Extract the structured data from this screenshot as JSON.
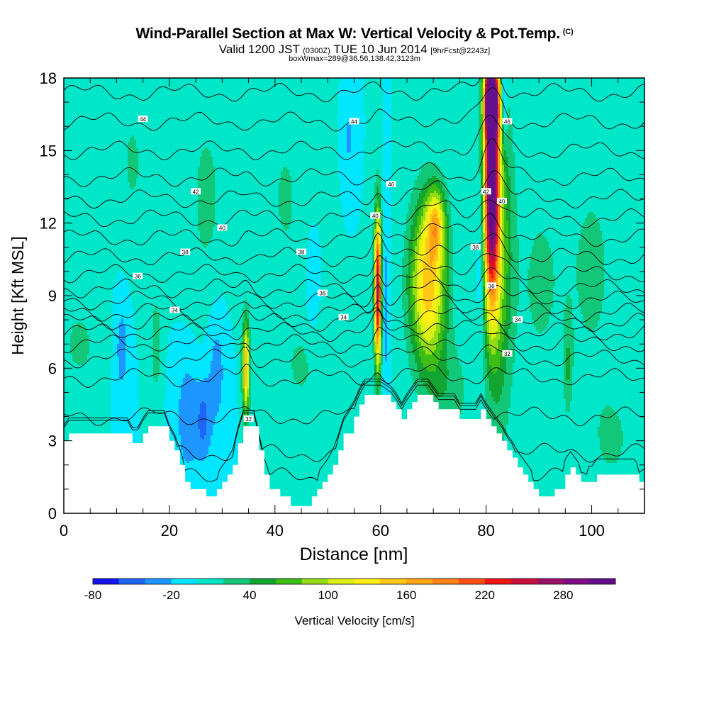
{
  "title": {
    "main": "Wind-Parallel Section at Max W: Vertical Velocity & Pot.Temp.",
    "copyright": "(C)",
    "valid_prefix": "Valid 1200 JST",
    "utc": "(0300Z)",
    "valid_date": "TUE 10 Jun 2014",
    "forecast": "[9hrFcst@2243z]",
    "box": "boxWmax=289@36.56,138.42,3123m"
  },
  "chart_data": {
    "type": "heatmap",
    "xlabel": "Distance [nm]",
    "ylabel": "Height [Kft MSL]",
    "xlim": [
      0,
      110
    ],
    "ylim": [
      0,
      18
    ],
    "x_ticks": [
      0,
      20,
      40,
      60,
      80,
      100
    ],
    "y_ticks": [
      0,
      3,
      6,
      9,
      12,
      15,
      18
    ],
    "colorbar": {
      "label": "Vertical Velocity [cm/s]",
      "levels": [
        -80,
        -60,
        -40,
        -20,
        0,
        20,
        40,
        60,
        80,
        100,
        120,
        140,
        160,
        180,
        200,
        220,
        240,
        260,
        280,
        300,
        320
      ],
      "tick_labels": [
        "-80",
        "-20",
        "40",
        "100",
        "160",
        "220",
        "280"
      ],
      "colors": [
        "#1414f0",
        "#1e64f5",
        "#1e96ff",
        "#00e6ff",
        "#00e6c8",
        "#12c878",
        "#12a532",
        "#3cbe14",
        "#96dc14",
        "#dcf014",
        "#fff014",
        "#ffc814",
        "#ffa514",
        "#ff8214",
        "#ff5014",
        "#f01414",
        "#c80f3c",
        "#9b0f64",
        "#7d0f82",
        "#640f8c"
      ]
    },
    "background_w": 0,
    "updrafts": [
      {
        "x": 81.0,
        "z": 13.5,
        "sx": 1.0,
        "sz": 3.4,
        "w": 300
      },
      {
        "x": 81.0,
        "z": 17.0,
        "sx": 0.9,
        "sz": 1.0,
        "w": 320
      },
      {
        "x": 82.5,
        "z": 11.0,
        "sx": 1.8,
        "sz": 5.0,
        "w": 80
      },
      {
        "x": 69.0,
        "z": 9.5,
        "sx": 2.4,
        "sz": 2.4,
        "w": 155
      },
      {
        "x": 70.5,
        "z": 12.0,
        "sx": 1.2,
        "sz": 1.0,
        "w": 100
      },
      {
        "x": 59.5,
        "z": 9.2,
        "sx": 0.45,
        "sz": 2.2,
        "w": 270
      },
      {
        "x": 34.5,
        "z": 6.0,
        "sx": 0.45,
        "sz": 1.4,
        "w": 160
      },
      {
        "x": 17.5,
        "z": 7.0,
        "sx": 0.7,
        "sz": 1.5,
        "w": 35
      },
      {
        "x": 95.5,
        "z": 6.0,
        "sx": 0.6,
        "sz": 1.4,
        "w": 35
      }
    ],
    "downdrafts": [
      {
        "x": 23.5,
        "z": 4.0,
        "sx": 1.6,
        "sz": 1.8,
        "w": -35
      },
      {
        "x": 26.5,
        "z": 3.8,
        "sx": 1.0,
        "sz": 1.2,
        "w": -40
      },
      {
        "x": 11.0,
        "z": 6.8,
        "sx": 0.9,
        "sz": 1.5,
        "w": -30
      },
      {
        "x": 29.0,
        "z": 6.0,
        "sx": 1.3,
        "sz": 2.0,
        "w": -30
      },
      {
        "x": 61.0,
        "z": 8.5,
        "sx": 0.5,
        "sz": 2.5,
        "w": -30
      },
      {
        "x": 79.0,
        "z": 11.0,
        "sx": 0.5,
        "sz": 2.5,
        "w": -30
      },
      {
        "x": 83.5,
        "z": 17.0,
        "sx": 0.4,
        "sz": 1.3,
        "w": -60
      },
      {
        "x": 54.0,
        "z": 15.5,
        "sx": 0.6,
        "sz": 1.0,
        "w": -25
      },
      {
        "x": 47.0,
        "z": 9.5,
        "sx": 0.8,
        "sz": 1.5,
        "w": -20
      }
    ],
    "weak_positive": [
      {
        "x": 13,
        "z": 14.5,
        "sx": 2.5,
        "sz": 2.5,
        "w": 22
      },
      {
        "x": 27,
        "z": 13.0,
        "sx": 3.0,
        "sz": 3.5,
        "w": 24
      },
      {
        "x": 42,
        "z": 13.0,
        "sx": 3.0,
        "sz": 3.0,
        "w": 22
      },
      {
        "x": 3,
        "z": 7.0,
        "sx": 3.0,
        "sz": 1.5,
        "w": 24
      },
      {
        "x": 45,
        "z": 6.0,
        "sx": 3.0,
        "sz": 1.5,
        "w": 22
      },
      {
        "x": 100,
        "z": 10.0,
        "sx": 4.0,
        "sz": 4.0,
        "w": 24
      },
      {
        "x": 104,
        "z": 3.0,
        "sx": 3.0,
        "sz": 1.5,
        "w": 22
      },
      {
        "x": 73,
        "z": 5.0,
        "sx": 3.0,
        "sz": 1.5,
        "w": 30
      },
      {
        "x": 90,
        "z": 9.5,
        "sx": 3.0,
        "sz": 3.0,
        "w": 24
      }
    ],
    "terrain": [
      [
        0,
        3.0
      ],
      [
        1,
        3.3
      ],
      [
        12,
        3.3
      ],
      [
        13,
        2.9
      ],
      [
        14,
        2.9
      ],
      [
        15,
        3.3
      ],
      [
        16,
        3.6
      ],
      [
        19,
        3.6
      ],
      [
        20,
        3.0
      ],
      [
        21,
        2.6
      ],
      [
        22,
        2.0
      ],
      [
        23,
        1.3
      ],
      [
        24,
        1.0
      ],
      [
        26,
        1.0
      ],
      [
        27,
        0.7
      ],
      [
        28,
        0.7
      ],
      [
        29,
        1.0
      ],
      [
        30,
        1.3
      ],
      [
        31,
        1.6
      ],
      [
        32,
        2.0
      ],
      [
        33,
        2.9
      ],
      [
        34,
        3.6
      ],
      [
        36,
        3.6
      ],
      [
        37,
        2.6
      ],
      [
        38,
        1.6
      ],
      [
        39,
        1.0
      ],
      [
        40,
        1.0
      ],
      [
        41,
        0.7
      ],
      [
        43,
        0.3
      ],
      [
        46,
        0.3
      ],
      [
        47,
        0.7
      ],
      [
        48,
        1.0
      ],
      [
        49,
        1.3
      ],
      [
        50,
        1.6
      ],
      [
        51,
        2.0
      ],
      [
        52,
        2.6
      ],
      [
        53,
        3.3
      ],
      [
        55,
        4.0
      ],
      [
        56,
        4.5
      ],
      [
        57,
        4.9
      ],
      [
        60,
        4.9
      ],
      [
        62,
        4.6
      ],
      [
        63,
        4.3
      ],
      [
        64,
        3.9
      ],
      [
        65,
        4.3
      ],
      [
        66,
        4.6
      ],
      [
        67,
        4.9
      ],
      [
        69,
        4.9
      ],
      [
        70,
        4.6
      ],
      [
        71,
        4.3
      ],
      [
        74,
        4.3
      ],
      [
        75,
        3.9
      ],
      [
        78,
        3.9
      ],
      [
        79,
        4.3
      ],
      [
        80,
        3.9
      ],
      [
        81,
        3.6
      ],
      [
        82,
        3.3
      ],
      [
        83,
        3.0
      ],
      [
        84,
        2.6
      ],
      [
        85,
        2.3
      ],
      [
        86,
        1.9
      ],
      [
        87,
        1.6
      ],
      [
        88,
        1.3
      ],
      [
        89,
        1.0
      ],
      [
        90,
        0.7
      ],
      [
        92,
        0.7
      ],
      [
        93,
        1.0
      ],
      [
        94,
        1.0
      ],
      [
        95,
        1.6
      ],
      [
        96,
        1.9
      ],
      [
        97,
        1.6
      ],
      [
        98,
        1.3
      ],
      [
        100,
        1.3
      ],
      [
        101,
        1.6
      ],
      [
        108,
        1.6
      ],
      [
        109,
        1.3
      ],
      [
        110,
        1.3
      ]
    ],
    "theta_levels": [
      27,
      28,
      29,
      30,
      31,
      32,
      33,
      34,
      35,
      36,
      37,
      38,
      39,
      40,
      41,
      42,
      43,
      44,
      45,
      46
    ],
    "theta_heights": [
      1.5,
      2.5,
      4.0,
      5.6,
      6.4,
      7.0,
      7.5,
      7.9,
      8.3,
      8.8,
      9.3,
      9.9,
      10.6,
      11.4,
      12.2,
      13.0,
      13.9,
      15.0,
      16.2,
      17.4
    ],
    "theta_labels": [
      {
        "text": "44",
        "x": 15,
        "z": 16.3
      },
      {
        "text": "44",
        "x": 55,
        "z": 16.2
      },
      {
        "text": "46",
        "x": 84,
        "z": 16.2
      },
      {
        "text": "46",
        "x": 62,
        "z": 13.6
      },
      {
        "text": "42",
        "x": 25,
        "z": 13.3
      },
      {
        "text": "42",
        "x": 80,
        "z": 13.3
      },
      {
        "text": "40",
        "x": 30,
        "z": 11.8
      },
      {
        "text": "40",
        "x": 59,
        "z": 12.3
      },
      {
        "text": "40",
        "x": 83,
        "z": 12.9
      },
      {
        "text": "38",
        "x": 23,
        "z": 10.8
      },
      {
        "text": "38",
        "x": 45,
        "z": 10.8
      },
      {
        "text": "38",
        "x": 78,
        "z": 11.0
      },
      {
        "text": "36",
        "x": 14,
        "z": 9.8
      },
      {
        "text": "36",
        "x": 49,
        "z": 9.1
      },
      {
        "text": "36",
        "x": 81,
        "z": 9.4
      },
      {
        "text": "34",
        "x": 21,
        "z": 8.4
      },
      {
        "text": "34",
        "x": 53,
        "z": 8.1
      },
      {
        "text": "34",
        "x": 86,
        "z": 8.0
      },
      {
        "text": "32",
        "x": 84,
        "z": 6.6
      },
      {
        "text": "32",
        "x": 35,
        "z": 3.9
      }
    ]
  }
}
